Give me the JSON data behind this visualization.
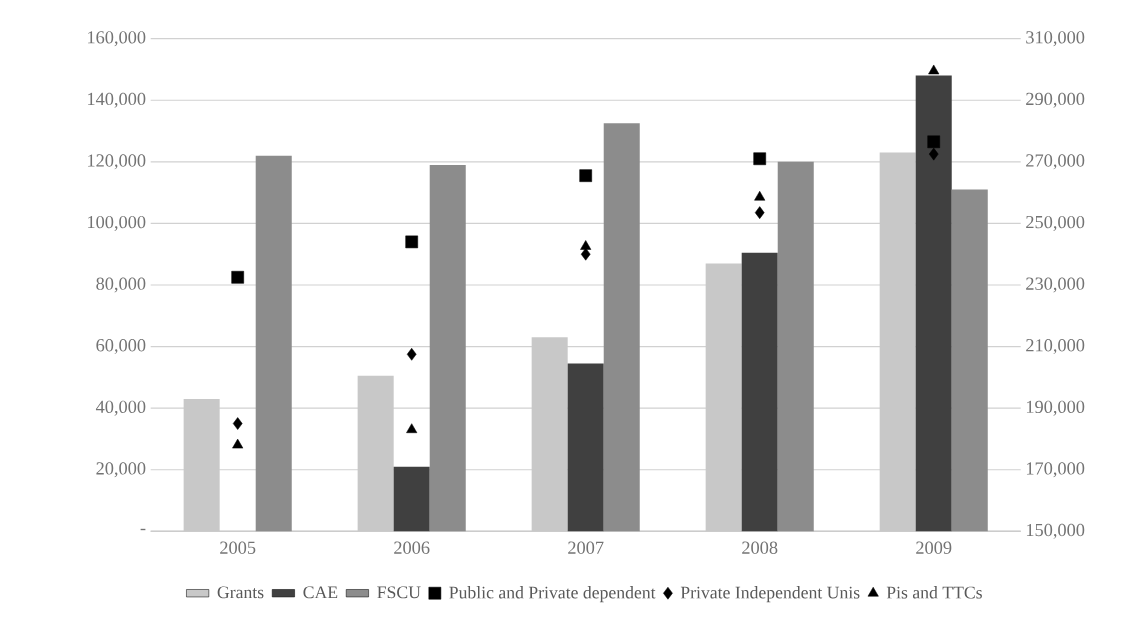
{
  "chart_data": {
    "type": "bar",
    "categories": [
      "2005",
      "2006",
      "2007",
      "2008",
      "2009"
    ],
    "series": [
      {
        "name": "Grants",
        "color": "#c8c8c8",
        "values": [
          43000,
          50500,
          63000,
          87000,
          123000
        ]
      },
      {
        "name": "CAE",
        "color": "#404040",
        "values": [
          null,
          21000,
          54500,
          90500,
          148000
        ]
      },
      {
        "name": "FSCU",
        "color": "#8c8c8c",
        "values": [
          122000,
          119000,
          132500,
          120000,
          111000
        ]
      },
      {
        "name": "Public and Private dependent",
        "type": "scatter",
        "axis": "y2",
        "marker": "square",
        "color": "#000000",
        "values": [
          232500,
          244000,
          265500,
          271000,
          276500
        ]
      },
      {
        "name": "Private Independent Unis",
        "type": "scatter",
        "axis": "y2",
        "marker": "diamond",
        "color": "#000000",
        "values": [
          185000,
          207500,
          240000,
          253500,
          272500
        ]
      },
      {
        "name": "Pis and TTCs",
        "type": "scatter",
        "axis": "y2",
        "marker": "triangle",
        "color": "#000000",
        "values": [
          178000,
          183000,
          242500,
          258500,
          299500
        ]
      }
    ],
    "ylim": [
      0,
      160000
    ],
    "yticks": [
      {
        "value": 0,
        "label": "-"
      },
      {
        "value": 20000,
        "label": "20,000"
      },
      {
        "value": 40000,
        "label": "40,000"
      },
      {
        "value": 60000,
        "label": "60,000"
      },
      {
        "value": 80000,
        "label": "80,000"
      },
      {
        "value": 100000,
        "label": "100,000"
      },
      {
        "value": 120000,
        "label": "120,000"
      },
      {
        "value": 140000,
        "label": "140,000"
      },
      {
        "value": 160000,
        "label": "160,000"
      }
    ],
    "y2lim": [
      150000,
      310000
    ],
    "y2ticks": [
      {
        "value": 150000,
        "label": "150,000"
      },
      {
        "value": 170000,
        "label": "170,000"
      },
      {
        "value": 190000,
        "label": "190,000"
      },
      {
        "value": 210000,
        "label": "210,000"
      },
      {
        "value": 230000,
        "label": "230,000"
      },
      {
        "value": 250000,
        "label": "250,000"
      },
      {
        "value": 270000,
        "label": "270,000"
      },
      {
        "value": 290000,
        "label": "290,000"
      },
      {
        "value": 310000,
        "label": "310,000"
      }
    ],
    "grid": "y",
    "legend": "bottom"
  }
}
